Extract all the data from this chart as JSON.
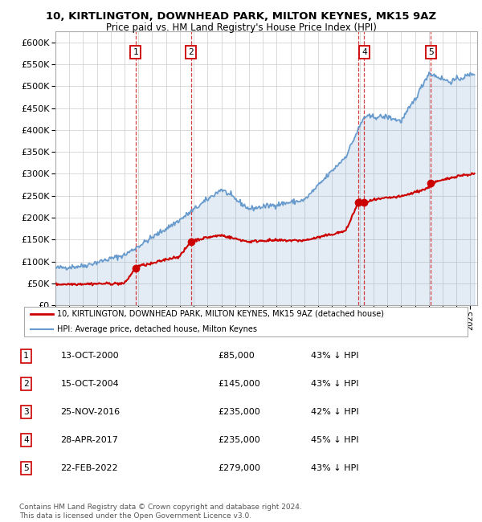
{
  "title": "10, KIRTLINGTON, DOWNHEAD PARK, MILTON KEYNES, MK15 9AZ",
  "subtitle": "Price paid vs. HM Land Registry's House Price Index (HPI)",
  "ylim": [
    0,
    625000
  ],
  "yticks": [
    0,
    50000,
    100000,
    150000,
    200000,
    250000,
    300000,
    350000,
    400000,
    450000,
    500000,
    550000,
    600000
  ],
  "xlim_start": 1995.0,
  "xlim_end": 2025.5,
  "sales": [
    {
      "year": 2000.79,
      "price": 85000,
      "label": "1"
    },
    {
      "year": 2004.79,
      "price": 145000,
      "label": "2"
    },
    {
      "year": 2016.9,
      "price": 235000,
      "label": "3"
    },
    {
      "year": 2017.33,
      "price": 235000,
      "label": "4"
    },
    {
      "year": 2022.14,
      "price": 279000,
      "label": "5"
    }
  ],
  "label_show": {
    "1": true,
    "2": true,
    "3": false,
    "4": true,
    "5": true
  },
  "sale_color": "#cc0000",
  "hpi_color": "#6699cc",
  "vline_color": "#cc0000",
  "legend_entries": [
    "10, KIRTLINGTON, DOWNHEAD PARK, MILTON KEYNES, MK15 9AZ (detached house)",
    "HPI: Average price, detached house, Milton Keynes"
  ],
  "table_data": [
    [
      "1",
      "13-OCT-2000",
      "£85,000",
      "43% ↓ HPI"
    ],
    [
      "2",
      "15-OCT-2004",
      "£145,000",
      "43% ↓ HPI"
    ],
    [
      "3",
      "25-NOV-2016",
      "£235,000",
      "42% ↓ HPI"
    ],
    [
      "4",
      "28-APR-2017",
      "£235,000",
      "45% ↓ HPI"
    ],
    [
      "5",
      "22-FEB-2022",
      "£279,000",
      "43% ↓ HPI"
    ]
  ],
  "footnote1": "Contains HM Land Registry data © Crown copyright and database right 2024.",
  "footnote2": "This data is licensed under the Open Government Licence v3.0.",
  "grid_color": "#cccccc",
  "background_color": "#ffffff"
}
